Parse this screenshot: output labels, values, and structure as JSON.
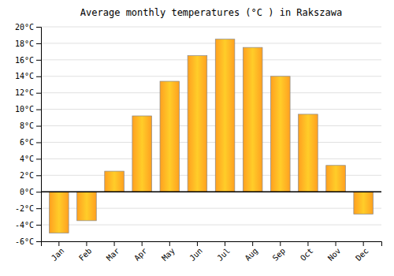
{
  "chart_data": {
    "type": "bar",
    "title": "Average monthly temperatures (°C ) in Rakszawa",
    "categories": [
      "Jan",
      "Feb",
      "Mar",
      "Apr",
      "May",
      "Jun",
      "Jul",
      "Aug",
      "Sep",
      "Oct",
      "Nov",
      "Dec"
    ],
    "values": [
      -5.0,
      -3.5,
      2.5,
      9.2,
      13.4,
      16.5,
      18.5,
      17.5,
      14.0,
      9.4,
      3.2,
      -2.7
    ],
    "color": "#FFA020",
    "ylim": [
      -6,
      20
    ],
    "yticks": [
      {
        "value": -6,
        "label": "-6°C"
      },
      {
        "value": -4,
        "label": "-4°C"
      },
      {
        "value": -2,
        "label": "-2°C"
      },
      {
        "value": 0,
        "label": "0°C"
      },
      {
        "value": 2,
        "label": "2°C"
      },
      {
        "value": 4,
        "label": "4°C"
      },
      {
        "value": 6,
        "label": "6°C"
      },
      {
        "value": 8,
        "label": "8°C"
      },
      {
        "value": 10,
        "label": "10°C"
      },
      {
        "value": 12,
        "label": "12°C"
      },
      {
        "value": 14,
        "label": "14°C"
      },
      {
        "value": 16,
        "label": "16°C"
      },
      {
        "value": 18,
        "label": "18°C"
      },
      {
        "value": 20,
        "label": "20°C"
      }
    ],
    "grid": true
  }
}
